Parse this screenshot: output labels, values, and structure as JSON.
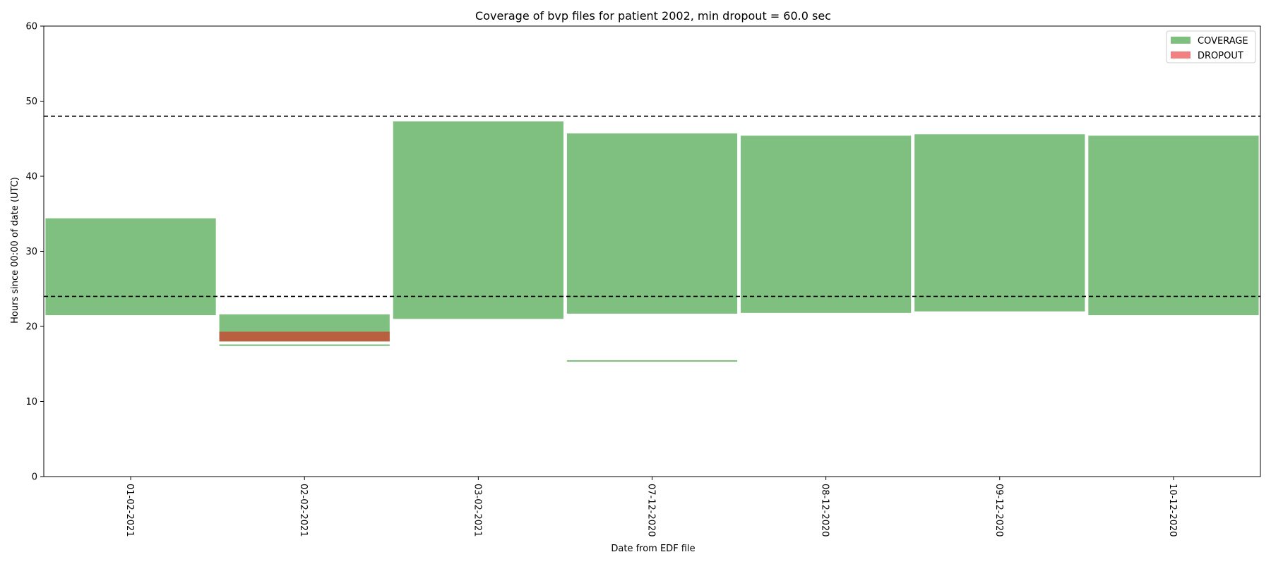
{
  "chart_data": {
    "type": "bar",
    "title": "Coverage of bvp files for patient 2002, min dropout = 60.0 sec",
    "xlabel": "Date from EDF file",
    "ylabel": "Hours since 00:00 of date (UTC)",
    "categories": [
      "01-02-2021",
      "02-02-2021",
      "03-02-2021",
      "07-12-2020",
      "08-12-2020",
      "09-12-2020",
      "10-12-2020"
    ],
    "ylim": [
      0,
      60
    ],
    "yticks": [
      0,
      10,
      20,
      30,
      40,
      50,
      60
    ],
    "reference_lines": [
      24,
      48
    ],
    "legend": {
      "placement": "top-right",
      "entries": [
        {
          "label": "COVERAGE",
          "color": "#7fc080"
        },
        {
          "label": "DROPOUT",
          "color": "#f28080"
        }
      ]
    },
    "series": [
      {
        "name": "COVERAGE",
        "color": "#7fc080",
        "segments": [
          {
            "category": "01-02-2021",
            "start": 21.5,
            "end": 34.4
          },
          {
            "category": "02-02-2021",
            "start": 17.4,
            "end": 17.6
          },
          {
            "category": "02-02-2021",
            "start": 18.0,
            "end": 21.6
          },
          {
            "category": "03-02-2021",
            "start": 21.0,
            "end": 47.3
          },
          {
            "category": "07-12-2020",
            "start": 15.3,
            "end": 15.5
          },
          {
            "category": "07-12-2020",
            "start": 21.7,
            "end": 45.7
          },
          {
            "category": "08-12-2020",
            "start": 21.8,
            "end": 45.4
          },
          {
            "category": "09-12-2020",
            "start": 22.0,
            "end": 45.6
          },
          {
            "category": "10-12-2020",
            "start": 21.5,
            "end": 45.4
          }
        ]
      },
      {
        "name": "DROPOUT",
        "color": "#f28080",
        "segments": [
          {
            "category": "02-02-2021",
            "start": 18.0,
            "end": 19.3
          }
        ]
      }
    ],
    "overlap_color": "#b86040",
    "reference_line_color": "#000000"
  }
}
